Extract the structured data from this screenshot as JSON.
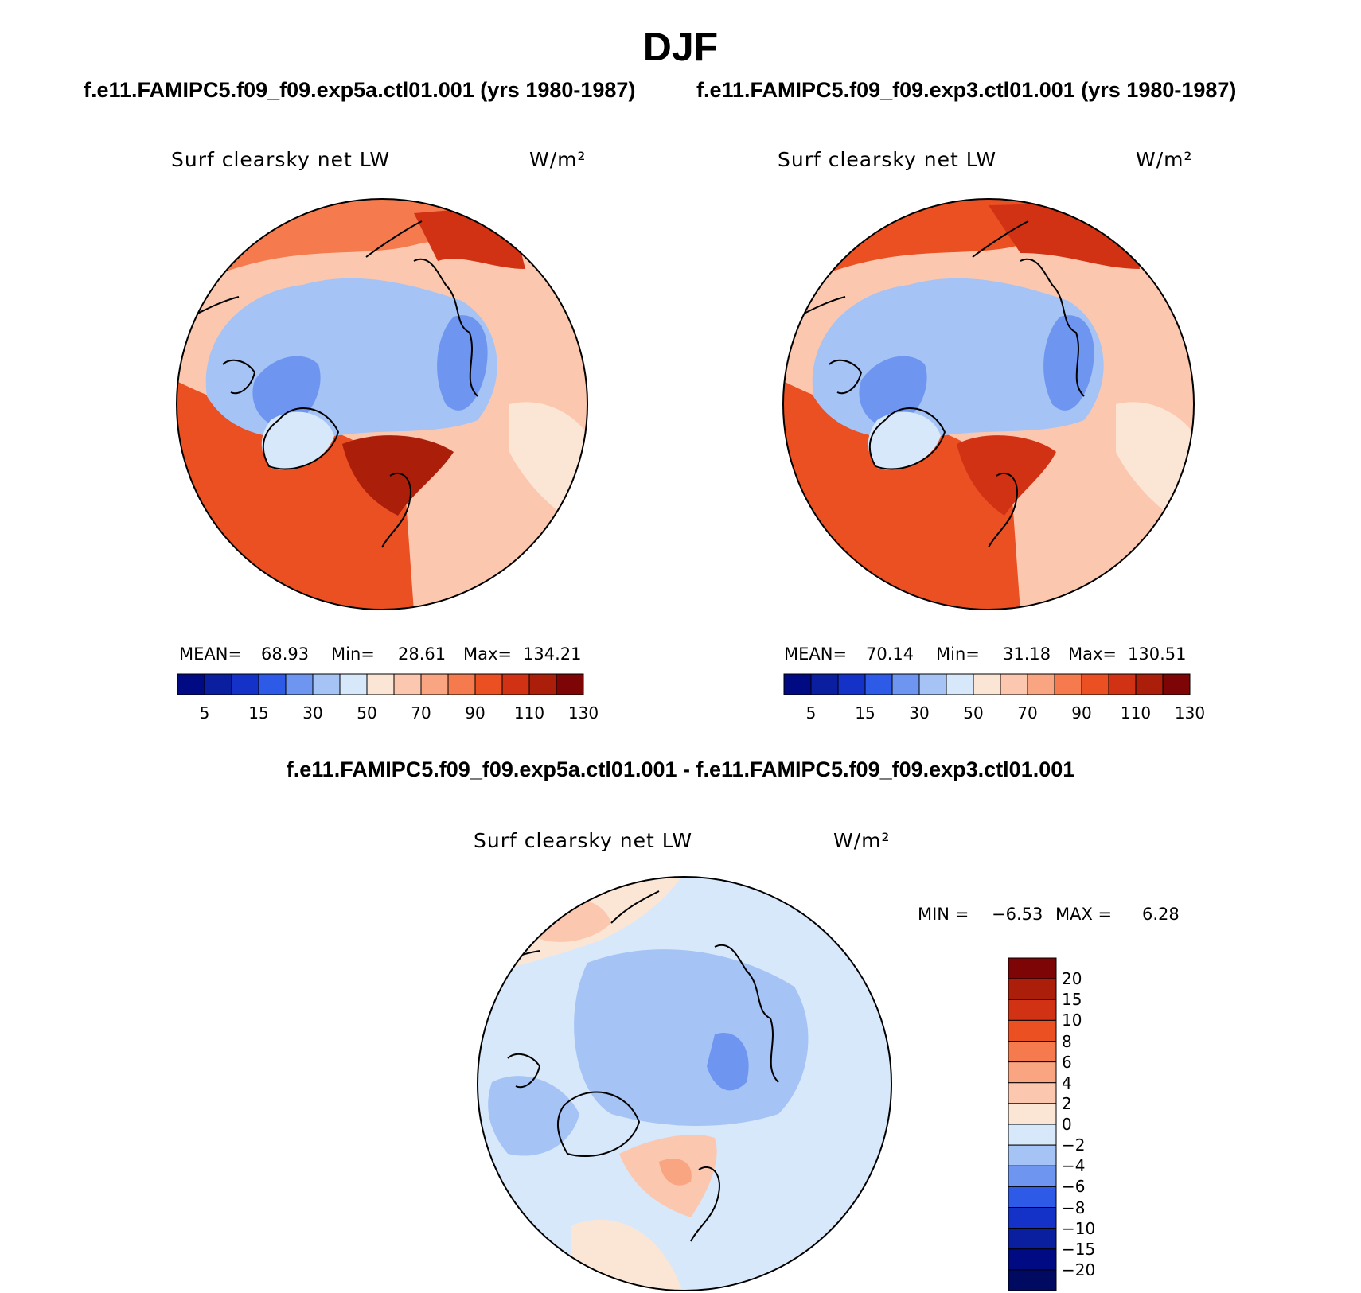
{
  "title": "DJF",
  "panels": [
    {
      "case_title": "f.e11.FAMIPC5.f09_f09.exp5a.ctl01.001 (yrs 1980-1987)",
      "variable": "Surf clearsky net LW",
      "units": "W/m²",
      "stats": {
        "mean_label": "MEAN=",
        "mean": "68.93",
        "min_label": "Min=",
        "min": "28.61",
        "max_label": "Max=",
        "max": "134.21"
      }
    },
    {
      "case_title": "f.e11.FAMIPC5.f09_f09.exp3.ctl01.001 (yrs 1980-1987)",
      "variable": "Surf clearsky net LW",
      "units": "W/m²",
      "stats": {
        "mean_label": "MEAN=",
        "mean": "70.14",
        "min_label": "Min=",
        "min": "31.18",
        "max_label": "Max=",
        "max": "130.51"
      }
    }
  ],
  "colorbar": {
    "tick_labels": [
      "5",
      "15",
      "30",
      "50",
      "70",
      "90",
      "110",
      "130"
    ],
    "colors": [
      "#000a82",
      "#0a1ea0",
      "#1432c8",
      "#2d5ae6",
      "#6e96f0",
      "#a5c3f5",
      "#d7e8fa",
      "#fbe6d6",
      "#fbc8af",
      "#f9a582",
      "#f57b4e",
      "#eb5023",
      "#d23214",
      "#aa1e0a",
      "#7d0505"
    ]
  },
  "difference": {
    "title": "f.e11.FAMIPC5.f09_f09.exp5a.ctl01.001 - f.e11.FAMIPC5.f09_f09.exp3.ctl01.001",
    "variable": "Surf clearsky net LW",
    "units": "W/m²",
    "min_label": "MIN =",
    "min": "−6.53",
    "max_label": "MAX =",
    "max": "6.28",
    "tick_labels": [
      "20",
      "15",
      "10",
      "8",
      "6",
      "4",
      "2",
      "0",
      "−2",
      "−4",
      "−6",
      "−8",
      "−10",
      "−15",
      "−20"
    ],
    "colors": [
      "#7d0505",
      "#aa1e0a",
      "#d23214",
      "#eb5023",
      "#f57b4e",
      "#f9a582",
      "#fbc8af",
      "#fbe6d6",
      "#d7e8fa",
      "#a5c3f5",
      "#6e96f0",
      "#2d5ae6",
      "#1432c8",
      "#0a1ea0",
      "#000a82",
      "#000a60"
    ]
  }
}
